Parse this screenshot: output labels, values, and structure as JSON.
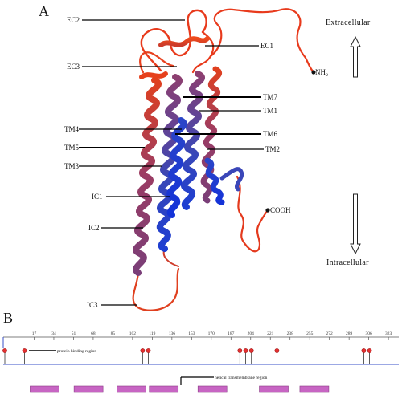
{
  "panel_a": {
    "panel_label": "A",
    "labels": {
      "ec2": "EC2",
      "ec3": "EC3",
      "ec1": "EC1",
      "nh2": "NH₂",
      "tm7": "TM7",
      "tm1": "TM1",
      "tm4": "TM4",
      "tm6": "TM6",
      "tm5": "TM5",
      "tm2": "TM2",
      "tm3": "TM3",
      "ic1": "IC1",
      "cooh": "COOH",
      "ic2": "IC2",
      "ic3": "IC3"
    },
    "extracellular": "Extracellular",
    "intracellular": "Intracellular"
  },
  "panel_b": {
    "panel_label": "B",
    "ticks": [
      "17",
      "34",
      "51",
      "68",
      "85",
      "102",
      "119",
      "136",
      "153",
      "170",
      "187",
      "204",
      "221",
      "238",
      "255",
      "272",
      "289",
      "306",
      "323"
    ],
    "protein_binding_label": "protein binding region",
    "helical_label": "helical transmembrane region",
    "lollipop_positions": [
      0,
      17,
      119,
      124,
      203,
      208,
      213,
      235,
      310,
      315
    ],
    "helix_segments": [
      [
        10,
        35
      ],
      [
        48,
        73
      ],
      [
        85,
        110
      ],
      [
        113,
        138
      ],
      [
        155,
        180
      ],
      [
        208,
        233
      ],
      [
        243,
        268
      ]
    ]
  },
  "colors": {
    "helix_red": "#e0381c",
    "helix_purple": "#8b3f6e",
    "helix_blue": "#1e3fd0",
    "lollipop_red": "#e53030",
    "segment_magenta": "#c765c3",
    "track_blue": "#3a50c8"
  }
}
